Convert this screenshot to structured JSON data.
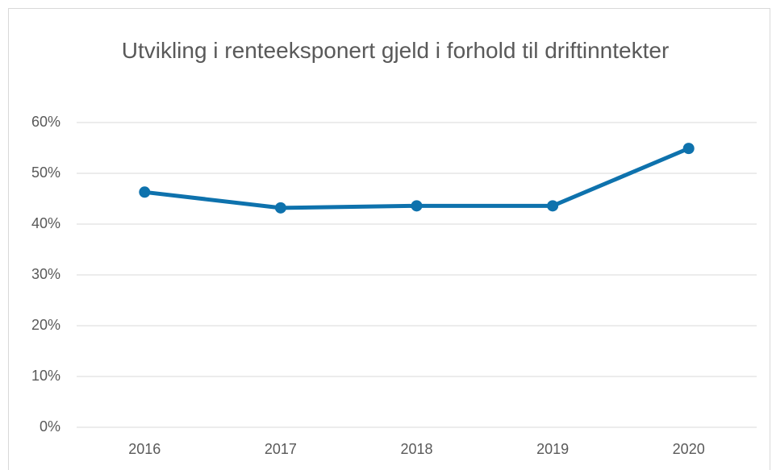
{
  "chart_data": {
    "type": "line",
    "title": "Utvikling i renteeksponert gjeld i forhold til driftinntekter",
    "categories": [
      "2016",
      "2017",
      "2018",
      "2019",
      "2020"
    ],
    "series": [
      {
        "color": "#0e72ad",
        "values": [
          46.3,
          43.2,
          43.6,
          43.6,
          54.9
        ]
      }
    ],
    "ylim": [
      0,
      60
    ],
    "yticks": [
      {
        "value": 0,
        "label": "0%"
      },
      {
        "value": 10,
        "label": "10%"
      },
      {
        "value": 20,
        "label": "20%"
      },
      {
        "value": 30,
        "label": "30%"
      },
      {
        "value": 40,
        "label": "40%"
      },
      {
        "value": 50,
        "label": "50%"
      },
      {
        "value": 60,
        "label": "60%"
      }
    ],
    "grid": true
  }
}
